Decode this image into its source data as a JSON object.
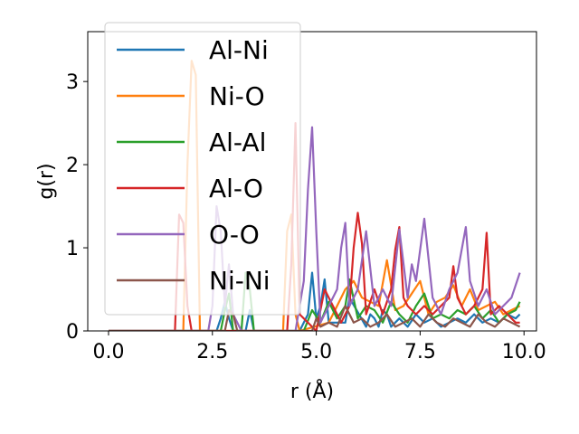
{
  "chart_data": {
    "type": "line",
    "title": "",
    "xlabel": "r (Å)",
    "ylabel": "g(r)",
    "xlim": [
      -0.5,
      10.3
    ],
    "ylim": [
      0,
      3.6
    ],
    "xticks": [
      "0.0",
      "2.5",
      "5.0",
      "7.5",
      "10.0"
    ],
    "xtick_values": [
      0,
      2.5,
      5,
      7.5,
      10
    ],
    "yticks": [
      "0",
      "1",
      "2",
      "3"
    ],
    "ytick_values": [
      0,
      1,
      2,
      3
    ],
    "grid": false,
    "legend": "upper-left",
    "series": [
      {
        "name": "Al-Ni",
        "color": "#1f77b4",
        "x": [
          0.0,
          2.6,
          2.7,
          2.8,
          2.9,
          3.0,
          3.3,
          3.4,
          3.5,
          4.6,
          4.8,
          4.9,
          5.0,
          5.1,
          5.2,
          5.3,
          5.7,
          5.8,
          6.2,
          6.3,
          6.4,
          6.5,
          6.6,
          6.7,
          6.8,
          7.0,
          7.2,
          7.4,
          7.6,
          7.8,
          8.0,
          8.2,
          8.4,
          8.6,
          8.8,
          9.0,
          9.2,
          9.4,
          9.6,
          9.8,
          9.9
        ],
        "y": [
          0.0,
          0.0,
          0.15,
          0.35,
          0.15,
          0.0,
          0.0,
          0.25,
          0.0,
          0.0,
          0.2,
          0.7,
          0.15,
          0.3,
          0.62,
          0.1,
          0.1,
          0.4,
          0.05,
          0.2,
          0.15,
          0.05,
          0.25,
          0.2,
          0.05,
          0.15,
          0.05,
          0.2,
          0.1,
          0.15,
          0.05,
          0.1,
          0.15,
          0.1,
          0.2,
          0.1,
          0.15,
          0.1,
          0.2,
          0.15,
          0.2
        ]
      },
      {
        "name": "Ni-O",
        "color": "#ff7f0e",
        "x": [
          0.0,
          1.8,
          1.9,
          2.0,
          2.1,
          2.2,
          4.2,
          4.3,
          4.4,
          4.5,
          4.6,
          5.3,
          5.5,
          5.7,
          5.9,
          6.1,
          6.3,
          6.5,
          6.7,
          6.9,
          7.1,
          7.3,
          7.5,
          7.7,
          7.9,
          8.1,
          8.3,
          8.5,
          8.7,
          8.9,
          9.1,
          9.3,
          9.5,
          9.7,
          9.9
        ],
        "y": [
          0.0,
          0.0,
          2.0,
          3.25,
          3.08,
          0.0,
          0.0,
          1.2,
          1.4,
          0.2,
          0.0,
          0.1,
          0.3,
          0.5,
          0.6,
          0.4,
          0.35,
          0.3,
          0.85,
          0.25,
          0.3,
          0.45,
          0.6,
          0.2,
          0.35,
          0.4,
          0.55,
          0.3,
          0.5,
          0.25,
          0.3,
          0.35,
          0.2,
          0.25,
          0.3
        ]
      },
      {
        "name": "Al-Al",
        "color": "#2ca02c",
        "x": [
          0.0,
          2.7,
          2.8,
          2.9,
          3.0,
          3.2,
          3.3,
          3.4,
          3.5,
          4.7,
          4.9,
          5.1,
          5.3,
          5.5,
          5.7,
          5.8,
          6.0,
          6.2,
          6.4,
          6.6,
          6.8,
          7.0,
          7.2,
          7.4,
          7.6,
          7.8,
          8.0,
          8.2,
          8.4,
          8.6,
          8.8,
          9.0,
          9.2,
          9.4,
          9.6,
          9.8,
          9.9
        ],
        "y": [
          0.0,
          0.0,
          0.25,
          0.45,
          0.0,
          0.0,
          0.7,
          0.5,
          0.0,
          0.0,
          0.25,
          0.1,
          0.35,
          0.15,
          0.3,
          0.62,
          0.15,
          0.3,
          0.25,
          0.1,
          0.35,
          0.2,
          0.1,
          0.3,
          0.45,
          0.15,
          0.2,
          0.15,
          0.25,
          0.2,
          0.3,
          0.15,
          0.25,
          0.1,
          0.2,
          0.25,
          0.35
        ]
      },
      {
        "name": "Al-O",
        "color": "#d62728",
        "x": [
          0.0,
          1.6,
          1.7,
          1.8,
          1.9,
          2.0,
          4.3,
          4.4,
          4.5,
          4.6,
          5.0,
          5.2,
          5.4,
          5.6,
          5.8,
          5.9,
          6.0,
          6.1,
          6.2,
          6.4,
          6.6,
          6.8,
          6.9,
          7.0,
          7.1,
          7.2,
          7.4,
          7.6,
          7.8,
          8.0,
          8.2,
          8.3,
          8.4,
          8.6,
          8.8,
          9.0,
          9.1,
          9.2,
          9.4,
          9.6,
          9.8,
          9.9
        ],
        "y": [
          0.0,
          0.0,
          1.4,
          1.3,
          0.3,
          0.0,
          0.0,
          0.8,
          2.5,
          0.2,
          0.0,
          0.5,
          0.3,
          0.1,
          0.3,
          1.0,
          1.42,
          1.05,
          0.2,
          0.5,
          0.2,
          0.5,
          0.98,
          1.25,
          0.4,
          0.3,
          0.2,
          0.3,
          0.2,
          0.3,
          0.4,
          0.78,
          0.4,
          0.2,
          0.3,
          0.5,
          1.18,
          0.2,
          0.3,
          0.2,
          0.1,
          0.1
        ]
      },
      {
        "name": "O-O",
        "color": "#9467bd",
        "x": [
          0.0,
          2.4,
          2.5,
          2.6,
          2.7,
          2.8,
          2.9,
          3.0,
          3.2,
          4.5,
          4.7,
          4.8,
          4.9,
          5.0,
          5.1,
          5.3,
          5.5,
          5.6,
          5.7,
          5.8,
          6.0,
          6.2,
          6.4,
          6.6,
          6.8,
          7.0,
          7.2,
          7.3,
          7.4,
          7.6,
          7.8,
          8.0,
          8.2,
          8.4,
          8.6,
          8.7,
          8.9,
          9.1,
          9.3,
          9.5,
          9.7,
          9.9
        ],
        "y": [
          0.0,
          0.0,
          0.3,
          1.5,
          1.2,
          0.3,
          0.8,
          0.2,
          0.0,
          0.0,
          0.6,
          1.7,
          2.45,
          1.2,
          0.1,
          0.3,
          0.5,
          1.0,
          1.3,
          0.3,
          0.5,
          1.2,
          0.3,
          0.5,
          0.3,
          1.22,
          0.4,
          0.8,
          0.6,
          1.35,
          0.4,
          0.2,
          0.5,
          0.7,
          1.25,
          0.6,
          0.3,
          0.5,
          0.2,
          0.3,
          0.4,
          0.7
        ]
      },
      {
        "name": "Ni-Ni",
        "color": "#8c564b",
        "x": [
          0.0,
          2.8,
          2.9,
          3.0,
          3.1,
          4.9,
          5.0,
          5.1,
          5.3,
          5.5,
          5.7,
          5.9,
          6.1,
          6.3,
          6.5,
          6.7,
          6.9,
          7.1,
          7.3,
          7.5,
          7.7,
          7.9,
          8.1,
          8.3,
          8.5,
          8.7,
          8.9,
          9.1,
          9.3,
          9.5,
          9.7,
          9.9
        ],
        "y": [
          0.0,
          0.0,
          0.25,
          0.2,
          0.0,
          0.0,
          0.15,
          0.05,
          0.1,
          0.05,
          0.3,
          0.1,
          0.15,
          0.05,
          0.1,
          0.2,
          0.05,
          0.1,
          0.15,
          0.05,
          0.2,
          0.1,
          0.05,
          0.15,
          0.1,
          0.05,
          0.2,
          0.1,
          0.05,
          0.15,
          0.1,
          0.05
        ]
      }
    ]
  }
}
